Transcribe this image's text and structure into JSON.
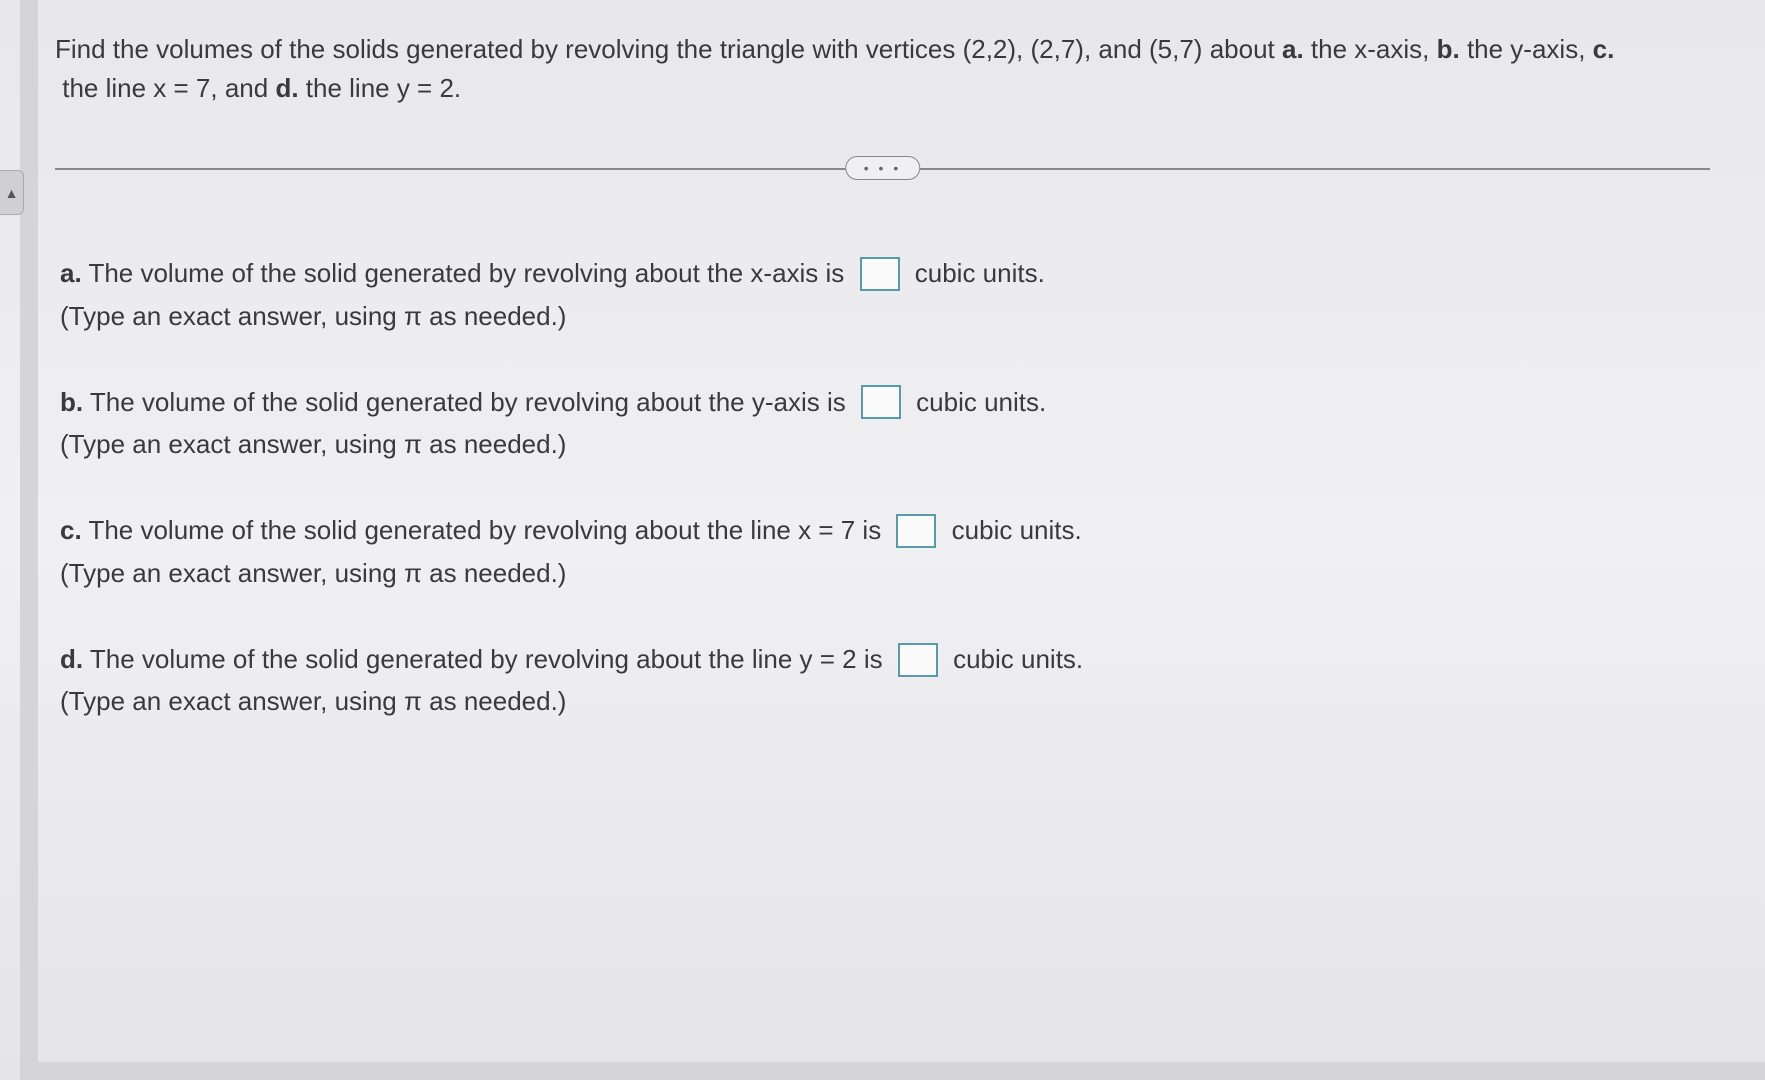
{
  "question": {
    "intro_part1": "Find the volumes of the solids generated by revolving the triangle with vertices (2,2), (2,7), and (5,7) about ",
    "label_a": "a.",
    "after_a": " the x-axis, ",
    "label_b": "b.",
    "after_b": " the y-axis, ",
    "label_c": "c.",
    "after_c": " the line x = 7, and ",
    "label_d": "d.",
    "after_d": " the line y = 2."
  },
  "divider": {
    "dots": "• • •"
  },
  "parts": {
    "a": {
      "label": "a.",
      "text_before": " The volume of the solid generated by revolving about the x-axis is ",
      "text_after": " cubic units.",
      "hint": "(Type an exact answer, using π as needed.)"
    },
    "b": {
      "label": "b.",
      "text_before": " The volume of the solid generated by revolving about the y-axis is ",
      "text_after": " cubic units.",
      "hint": "(Type an exact answer, using π as needed.)"
    },
    "c": {
      "label": "c.",
      "text_before": " The volume of the solid generated by revolving about the line x = 7 is ",
      "text_after": " cubic units.",
      "hint": "(Type an exact answer, using π as needed.)"
    },
    "d": {
      "label": "d.",
      "text_before": " The volume of the solid generated by revolving about the line y = 2 is ",
      "text_after": " cubic units.",
      "hint": "(Type an exact answer, using π as needed.)"
    }
  },
  "collapse_arrow": "▲",
  "styling": {
    "background_color": "#f0f0f2",
    "text_color": "#3a3a3a",
    "font_size_main": 26,
    "answer_box_border_color": "#5a9aa8",
    "divider_color": "#888"
  }
}
